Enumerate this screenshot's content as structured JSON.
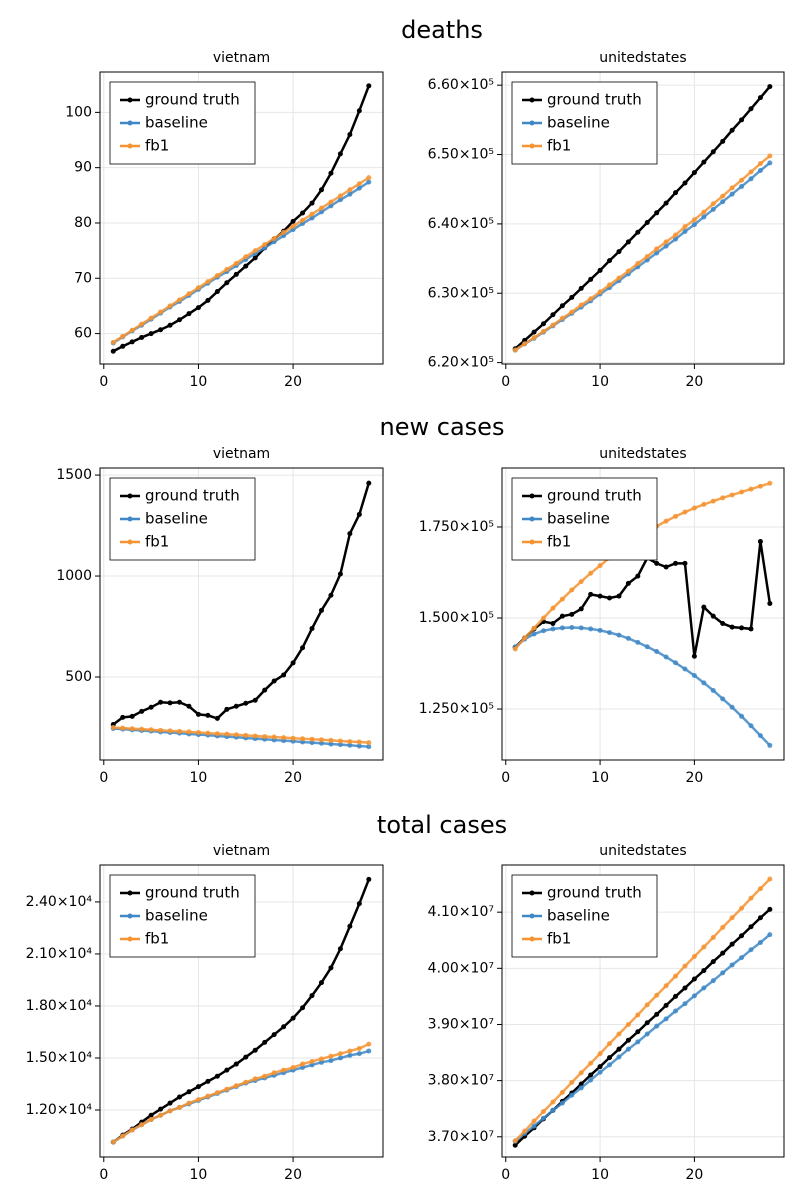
{
  "titles": [
    "deaths",
    "new cases",
    "total cases"
  ],
  "chart_data": [
    {
      "type": "line",
      "title": "vietnam",
      "x": [
        1,
        2,
        3,
        4,
        5,
        6,
        7,
        8,
        9,
        10,
        11,
        12,
        13,
        14,
        15,
        16,
        17,
        18,
        19,
        20,
        21,
        22,
        23,
        24,
        25,
        26,
        27,
        28
      ],
      "xlim": [
        -0.4,
        29.5
      ],
      "xticks": [
        0,
        10,
        20
      ],
      "ylim": [
        54.5,
        107.3
      ],
      "yticks": [
        60,
        70,
        80,
        90,
        100
      ],
      "grid": true,
      "legend": "upper left",
      "series": [
        {
          "name": "ground truth",
          "color": "#000000",
          "values": [
            56.8,
            57.7,
            58.5,
            59.3,
            60.0,
            60.7,
            61.5,
            62.5,
            63.6,
            64.7,
            66.0,
            67.6,
            69.2,
            70.7,
            72.2,
            73.7,
            75.5,
            77.1,
            78.5,
            80.3,
            81.8,
            83.6,
            86.0,
            89.0,
            92.5,
            96.0,
            100.3,
            104.8
          ]
        },
        {
          "name": "baseline",
          "color": "#3f88c5",
          "values": [
            58.3,
            59.4,
            60.5,
            61.5,
            62.6,
            63.7,
            64.8,
            65.8,
            66.9,
            68.0,
            69.1,
            70.2,
            71.2,
            72.3,
            73.4,
            74.5,
            75.5,
            76.6,
            77.7,
            78.8,
            79.9,
            80.9,
            82.0,
            83.1,
            84.2,
            85.2,
            86.3,
            87.4
          ]
        },
        {
          "name": "fb1",
          "color": "#f59331",
          "values": [
            58.4,
            59.5,
            60.6,
            61.7,
            62.8,
            63.9,
            65.0,
            66.1,
            67.2,
            68.3,
            69.4,
            70.5,
            71.6,
            72.7,
            73.9,
            75.0,
            76.1,
            77.2,
            78.3,
            79.4,
            80.5,
            81.6,
            82.7,
            83.8,
            84.9,
            86.0,
            87.1,
            88.2
          ]
        }
      ]
    },
    {
      "type": "line",
      "title": "unitedstates",
      "x": [
        1,
        2,
        3,
        4,
        5,
        6,
        7,
        8,
        9,
        10,
        11,
        12,
        13,
        14,
        15,
        16,
        17,
        18,
        19,
        20,
        21,
        22,
        23,
        24,
        25,
        26,
        27,
        28
      ],
      "xlim": [
        -0.4,
        29.5
      ],
      "xticks": [
        0,
        10,
        20
      ],
      "ylim": [
        619800,
        661900
      ],
      "yticks": [
        {
          "value": 620000,
          "label": "6.20×10⁵"
        },
        {
          "value": 630000,
          "label": "6.30×10⁵"
        },
        {
          "value": 640000,
          "label": "6.40×10⁵"
        },
        {
          "value": 650000,
          "label": "6.50×10⁵"
        },
        {
          "value": 660000,
          "label": "6.60×10⁵"
        }
      ],
      "grid": true,
      "legend": "upper left",
      "series": [
        {
          "name": "ground truth",
          "color": "#000000",
          "values": [
            622000,
            623200,
            624400,
            625600,
            626900,
            628200,
            629400,
            630700,
            632000,
            633300,
            634700,
            636000,
            637400,
            638800,
            640200,
            641600,
            643000,
            644500,
            645900,
            647400,
            648900,
            650400,
            651900,
            653500,
            655000,
            656600,
            658200,
            659800
          ]
        },
        {
          "name": "baseline",
          "color": "#3f88c5",
          "values": [
            621800,
            622700,
            623500,
            624400,
            625300,
            626200,
            627100,
            628000,
            628900,
            629900,
            630800,
            631800,
            632800,
            633800,
            634800,
            635800,
            636800,
            637800,
            638900,
            639900,
            641000,
            642100,
            643200,
            644300,
            645400,
            646500,
            647700,
            648800
          ]
        },
        {
          "name": "fb1",
          "color": "#f59331",
          "values": [
            621800,
            622700,
            623600,
            624500,
            625400,
            626400,
            627300,
            628300,
            629200,
            630200,
            631200,
            632200,
            633200,
            634300,
            635300,
            636400,
            637400,
            638400,
            639600,
            640600,
            641700,
            642900,
            644000,
            645200,
            646300,
            647500,
            648700,
            649800
          ]
        }
      ]
    },
    {
      "type": "line",
      "title": "vietnam",
      "x": [
        1,
        2,
        3,
        4,
        5,
        6,
        7,
        8,
        9,
        10,
        11,
        12,
        13,
        14,
        15,
        16,
        17,
        18,
        19,
        20,
        21,
        22,
        23,
        24,
        25,
        26,
        27,
        28
      ],
      "xlim": [
        -0.4,
        29.5
      ],
      "xticks": [
        0,
        10,
        20
      ],
      "ylim": [
        89,
        1535
      ],
      "yticks": [
        500,
        1000,
        1500
      ],
      "grid": true,
      "legend": "upper left",
      "series": [
        {
          "name": "ground truth",
          "color": "#000000",
          "values": [
            265,
            300,
            305,
            330,
            350,
            375,
            372,
            375,
            355,
            315,
            310,
            295,
            340,
            355,
            370,
            385,
            435,
            480,
            510,
            570,
            645,
            740,
            830,
            905,
            1010,
            1210,
            1305,
            1460
          ]
        },
        {
          "name": "baseline",
          "color": "#3f88c5",
          "values": [
            245,
            242,
            238,
            235,
            232,
            228,
            225,
            222,
            218,
            215,
            212,
            208,
            205,
            202,
            198,
            195,
            192,
            188,
            185,
            182,
            178,
            175,
            172,
            168,
            165,
            162,
            158,
            155
          ]
        },
        {
          "name": "fb1",
          "color": "#f59331",
          "values": [
            250,
            247,
            244,
            242,
            239,
            236,
            233,
            231,
            228,
            225,
            222,
            219,
            217,
            214,
            211,
            208,
            205,
            203,
            200,
            197,
            194,
            192,
            189,
            186,
            183,
            180,
            178,
            175
          ]
        }
      ]
    },
    {
      "type": "line",
      "title": "unitedstates",
      "x": [
        1,
        2,
        3,
        4,
        5,
        6,
        7,
        8,
        9,
        10,
        11,
        12,
        13,
        14,
        15,
        16,
        17,
        18,
        19,
        20,
        21,
        22,
        23,
        24,
        25,
        26,
        27,
        28
      ],
      "xlim": [
        -0.4,
        29.5
      ],
      "xticks": [
        0,
        10,
        20
      ],
      "ylim": [
        111000,
        191200
      ],
      "yticks": [
        {
          "value": 125000,
          "label": "1.250×10⁵"
        },
        {
          "value": 150000,
          "label": "1.500×10⁵"
        },
        {
          "value": 175000,
          "label": "1.750×10⁵"
        }
      ],
      "grid": true,
      "legend": "upper left",
      "series": [
        {
          "name": "ground truth",
          "color": "#000000",
          "values": [
            142000,
            144500,
            147000,
            149000,
            148500,
            150500,
            151000,
            152500,
            156500,
            156000,
            155500,
            156000,
            159500,
            161500,
            166500,
            165000,
            164000,
            165000,
            165000,
            139500,
            153000,
            150500,
            148500,
            147500,
            147300,
            147000,
            171000,
            154000
          ]
        },
        {
          "name": "baseline",
          "color": "#3f88c5",
          "values": [
            142000,
            144200,
            145600,
            146500,
            147000,
            147300,
            147400,
            147300,
            147000,
            146600,
            146000,
            145300,
            144400,
            143300,
            142100,
            140800,
            139300,
            137700,
            136000,
            134200,
            132200,
            130100,
            127800,
            125500,
            123000,
            120400,
            117700,
            115000
          ]
        },
        {
          "name": "fb1",
          "color": "#f59331",
          "values": [
            141500,
            144500,
            147200,
            150000,
            152700,
            155200,
            157700,
            160000,
            162300,
            164400,
            166500,
            168400,
            170300,
            172000,
            173700,
            175200,
            176600,
            177900,
            179100,
            180200,
            181200,
            182100,
            183000,
            183800,
            184600,
            185400,
            186200,
            187000
          ]
        }
      ]
    },
    {
      "type": "line",
      "title": "vietnam",
      "x": [
        1,
        2,
        3,
        4,
        5,
        6,
        7,
        8,
        9,
        10,
        11,
        12,
        13,
        14,
        15,
        16,
        17,
        18,
        19,
        20,
        21,
        22,
        23,
        24,
        25,
        26,
        27,
        28
      ],
      "xlim": [
        -0.4,
        29.5
      ],
      "xticks": [
        0,
        10,
        20
      ],
      "ylim": [
        9290,
        26130
      ],
      "yticks": [
        {
          "value": 12000,
          "label": "1.20×10⁴"
        },
        {
          "value": 15000,
          "label": "1.50×10⁴"
        },
        {
          "value": 18000,
          "label": "1.80×10⁴"
        },
        {
          "value": 21000,
          "label": "2.10×10⁴"
        },
        {
          "value": 24000,
          "label": "2.40×10⁴"
        }
      ],
      "grid": true,
      "legend": "upper left",
      "series": [
        {
          "name": "ground truth",
          "color": "#000000",
          "values": [
            10150,
            10550,
            10900,
            11300,
            11700,
            12050,
            12400,
            12750,
            13050,
            13350,
            13650,
            13950,
            14300,
            14650,
            15050,
            15450,
            15900,
            16350,
            16800,
            17300,
            17900,
            18600,
            19350,
            20200,
            21300,
            22600,
            23900,
            25300
          ]
        },
        {
          "name": "baseline",
          "color": "#3f88c5",
          "values": [
            10150,
            10500,
            10850,
            11150,
            11450,
            11700,
            11950,
            12150,
            12350,
            12550,
            12750,
            12950,
            13150,
            13350,
            13550,
            13700,
            13850,
            14000,
            14150,
            14300,
            14450,
            14600,
            14750,
            14850,
            15000,
            15150,
            15250,
            15400
          ]
        },
        {
          "name": "fb1",
          "color": "#f59331",
          "values": [
            10150,
            10500,
            10850,
            11150,
            11450,
            11700,
            11950,
            12150,
            12400,
            12600,
            12800,
            13000,
            13200,
            13400,
            13600,
            13800,
            13950,
            14150,
            14300,
            14450,
            14650,
            14800,
            14950,
            15100,
            15250,
            15400,
            15550,
            15800
          ]
        }
      ]
    },
    {
      "type": "line",
      "title": "unitedstates",
      "x": [
        1,
        2,
        3,
        4,
        5,
        6,
        7,
        8,
        9,
        10,
        11,
        12,
        13,
        14,
        15,
        16,
        17,
        18,
        19,
        20,
        21,
        22,
        23,
        24,
        25,
        26,
        27,
        28
      ],
      "xlim": [
        -0.4,
        29.5
      ],
      "xticks": [
        0,
        10,
        20
      ],
      "ylim": [
        36640000,
        41840000
      ],
      "yticks": [
        {
          "value": 37000000,
          "label": "3.70×10⁷"
        },
        {
          "value": 38000000,
          "label": "3.80×10⁷"
        },
        {
          "value": 39000000,
          "label": "3.90×10⁷"
        },
        {
          "value": 40000000,
          "label": "4.00×10⁷"
        },
        {
          "value": 41000000,
          "label": "4.10×10⁷"
        }
      ],
      "grid": true,
      "legend": "upper left",
      "series": [
        {
          "name": "ground truth",
          "color": "#000000",
          "values": [
            36850000,
            37010000,
            37160000,
            37320000,
            37470000,
            37630000,
            37780000,
            37940000,
            38100000,
            38250000,
            38410000,
            38560000,
            38720000,
            38870000,
            39030000,
            39180000,
            39340000,
            39500000,
            39650000,
            39810000,
            39960000,
            40120000,
            40270000,
            40430000,
            40580000,
            40740000,
            40900000,
            41050000
          ]
        },
        {
          "name": "baseline",
          "color": "#3f88c5",
          "values": [
            36920000,
            37060000,
            37190000,
            37330000,
            37470000,
            37600000,
            37740000,
            37870000,
            38010000,
            38150000,
            38280000,
            38420000,
            38560000,
            38690000,
            38830000,
            38970000,
            39100000,
            39240000,
            39370000,
            39510000,
            39650000,
            39780000,
            39920000,
            40060000,
            40190000,
            40330000,
            40460000,
            40600000
          ]
        },
        {
          "name": "fb1",
          "color": "#f59331",
          "values": [
            36930000,
            37100000,
            37280000,
            37450000,
            37620000,
            37790000,
            37970000,
            38140000,
            38310000,
            38480000,
            38660000,
            38830000,
            39000000,
            39170000,
            39350000,
            39520000,
            39690000,
            39860000,
            40040000,
            40210000,
            40380000,
            40550000,
            40730000,
            40900000,
            41070000,
            41250000,
            41420000,
            41590000
          ]
        }
      ]
    }
  ]
}
